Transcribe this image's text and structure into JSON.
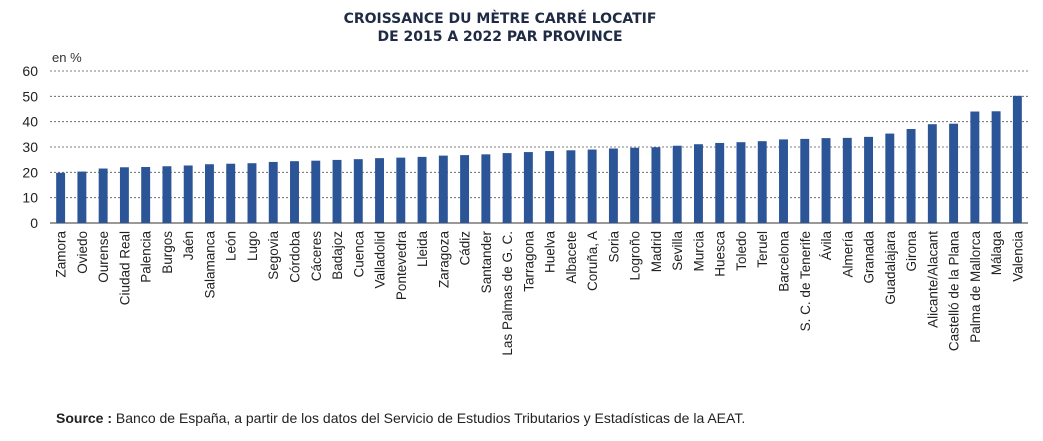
{
  "chart_data": {
    "type": "bar",
    "title_line1": "CROISSANCE DU MÈTRE CARRÉ LOCATIF",
    "title_line2": "DE 2015 A 2022 PAR  PROVINCE",
    "unit_label": "en %",
    "ylim": [
      0,
      60
    ],
    "yticks": [
      0,
      10,
      20,
      30,
      40,
      50,
      60
    ],
    "grid": true,
    "bar_color": "#2b5597",
    "categories": [
      "Zamora",
      "Oviedo",
      "Ourense",
      "Ciudad Real",
      "Palencia",
      "Burgos",
      "Jaén",
      "Salamanca",
      "León",
      "Lugo",
      "Segovia",
      "Córdoba",
      "Cáceres",
      "Badajoz",
      "Cuenca",
      "Valladolid",
      "Pontevedra",
      "Lleida",
      "Zaragoza",
      "Cádiz",
      "Santander",
      "Las Palmas de G. C.",
      "Tarragona",
      "Huelva",
      "Albacete",
      "Coruña, A",
      "Soria",
      "Logroño",
      "Madrid",
      "Sevilla",
      "Murcia",
      "Huesca",
      "Toledo",
      "Teruel",
      "Barcelona",
      "S. C. de Tenerife",
      "Ávila",
      "Almería",
      "Granada",
      "Guadalajara",
      "Girona",
      "Alicante/Alacant",
      "Castelló de la Plana",
      "Palma de Mallorca",
      "Málaga",
      "Valencia"
    ],
    "values": [
      19.8,
      20.3,
      21.5,
      22.0,
      22.1,
      22.4,
      22.7,
      23.2,
      23.4,
      23.6,
      24.1,
      24.4,
      24.6,
      24.9,
      25.2,
      25.6,
      25.8,
      26.1,
      26.6,
      26.8,
      27.1,
      27.6,
      28.0,
      28.4,
      28.7,
      29.0,
      29.4,
      29.7,
      29.9,
      30.5,
      31.1,
      31.6,
      31.9,
      32.3,
      33.0,
      33.2,
      33.5,
      33.6,
      34.0,
      35.3,
      37.1,
      39.0,
      39.2,
      44.0,
      44.1,
      50.2
    ]
  },
  "source": {
    "label": "Source :",
    "text": " Banco de España, a partir de los datos del Servicio de Estudios Tributarios y Estadísticas de la AEAT."
  }
}
